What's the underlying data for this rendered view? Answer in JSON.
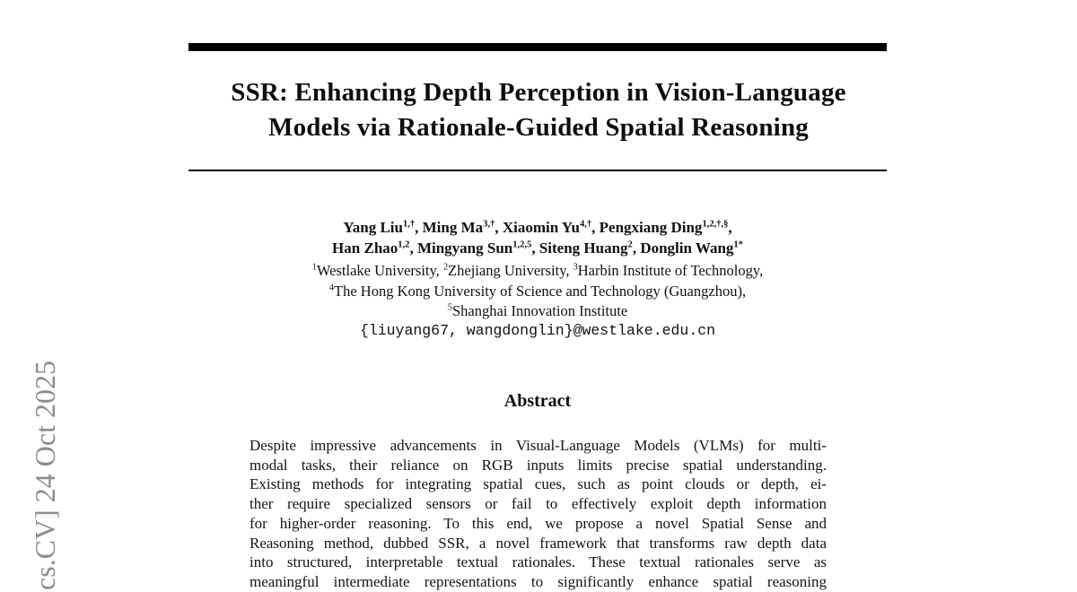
{
  "colors": {
    "text": "#141414",
    "rule": "#000000",
    "watermark_gray": "#8c8c8c",
    "background": "#ffffff"
  },
  "watermark": {
    "text": "cs.CV]  24 Oct 2025"
  },
  "paper": {
    "title_line1": "SSR: Enhancing Depth Perception in Vision-Language",
    "title_line2": "Models via Rationale-Guided Spatial Reasoning",
    "authors_line1": [
      {
        "t": "Yang Liu"
      },
      {
        "t": "1,†",
        "sup": true
      },
      {
        "t": ", Ming Ma"
      },
      {
        "t": "3,†",
        "sup": true
      },
      {
        "t": ", Xiaomin Yu"
      },
      {
        "t": "4,†",
        "sup": true
      },
      {
        "t": ", Pengxiang Ding"
      },
      {
        "t": "1,2,†,§",
        "sup": true
      },
      {
        "t": ","
      }
    ],
    "authors_line2": [
      {
        "t": "Han Zhao"
      },
      {
        "t": "1,2",
        "sup": true
      },
      {
        "t": ", Mingyang Sun"
      },
      {
        "t": "1,2,5",
        "sup": true
      },
      {
        "t": ", Siteng Huang"
      },
      {
        "t": "2",
        "sup": true
      },
      {
        "t": ", Donglin Wang"
      },
      {
        "t": "1*",
        "sup": true
      }
    ],
    "affiliations": [
      [
        {
          "t": "1",
          "sup": true
        },
        {
          "t": "Westlake University, "
        },
        {
          "t": "2",
          "sup": true
        },
        {
          "t": "Zhejiang University, "
        },
        {
          "t": "3",
          "sup": true
        },
        {
          "t": "Harbin Institute of Technology,"
        }
      ],
      [
        {
          "t": "4",
          "sup": true
        },
        {
          "t": "The Hong Kong University of Science and Technology (Guangzhou),"
        }
      ],
      [
        {
          "t": "5",
          "sup": true
        },
        {
          "t": "Shanghai Innovation Institute"
        }
      ]
    ],
    "email": "{liuyang67, wangdonglin}@westlake.edu.cn",
    "abstract": {
      "heading": "Abstract",
      "lines": [
        "Despite impressive advancements in Visual-Language Models (VLMs) for multi-",
        "modal tasks, their reliance on RGB inputs limits precise spatial understanding.",
        "Existing methods for integrating spatial cues, such as point clouds or depth, ei-",
        "ther require specialized sensors or fail to effectively exploit depth information",
        "for higher-order reasoning. To this end, we propose a novel Spatial Sense and",
        "Reasoning method, dubbed SSR, a novel framework that transforms raw depth data",
        "into structured, interpretable textual rationales. These textual rationales serve as",
        "meaningful intermediate representations to significantly enhance spatial reasoning"
      ]
    }
  }
}
